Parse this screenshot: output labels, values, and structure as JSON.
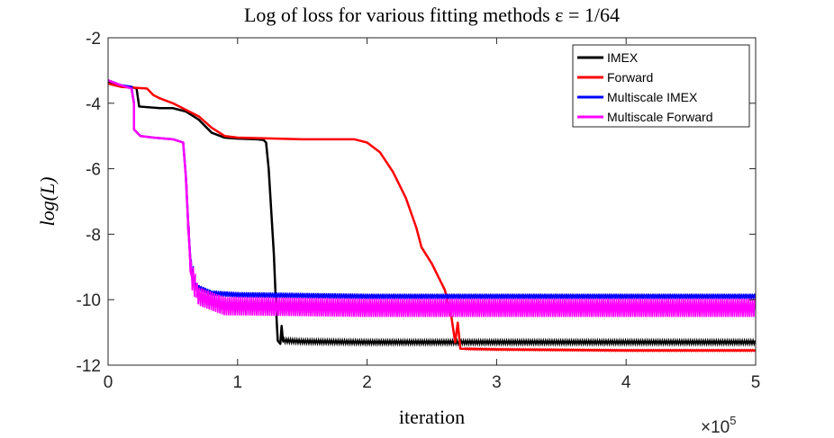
{
  "chart_data": {
    "type": "line",
    "title": "Log of loss for various fitting methods ε = 1/64",
    "xlabel": "iteration",
    "ylabel": "log(L)",
    "x_exponent_label": "×10",
    "x_exponent_power": "5",
    "xlim": [
      0,
      5
    ],
    "ylim": [
      -12,
      -2
    ],
    "xticks": [
      0,
      1,
      2,
      3,
      4,
      5
    ],
    "xtick_labels": [
      "0",
      "1",
      "2",
      "3",
      "4",
      "5"
    ],
    "yticks": [
      -12,
      -10,
      -8,
      -6,
      -4,
      -2
    ],
    "ytick_labels": [
      "-12",
      "-10",
      "-8",
      "-6",
      "-4",
      "-2"
    ],
    "legend_position": "top-right",
    "series": [
      {
        "name": "IMEX",
        "color": "#000000",
        "noise": [
          {
            "x_start": 1.35,
            "x_end": 5.0,
            "amplitude": 0.06
          }
        ],
        "points": [
          [
            0,
            -3.35
          ],
          [
            0.08,
            -3.45
          ],
          [
            0.18,
            -3.5
          ],
          [
            0.22,
            -3.55
          ],
          [
            0.24,
            -4.1
          ],
          [
            0.4,
            -4.15
          ],
          [
            0.5,
            -4.15
          ],
          [
            0.6,
            -4.25
          ],
          [
            0.7,
            -4.5
          ],
          [
            0.8,
            -4.9
          ],
          [
            0.9,
            -5.05
          ],
          [
            1.0,
            -5.08
          ],
          [
            1.15,
            -5.1
          ],
          [
            1.2,
            -5.12
          ],
          [
            1.22,
            -5.2
          ],
          [
            1.24,
            -6.0
          ],
          [
            1.26,
            -7.3
          ],
          [
            1.28,
            -8.6
          ],
          [
            1.3,
            -10.5
          ],
          [
            1.31,
            -11.25
          ],
          [
            1.33,
            -11.35
          ],
          [
            1.34,
            -10.8
          ],
          [
            1.35,
            -11.25
          ],
          [
            1.5,
            -11.28
          ],
          [
            2.0,
            -11.3
          ],
          [
            3.0,
            -11.3
          ],
          [
            4.0,
            -11.3
          ],
          [
            5.0,
            -11.3
          ]
        ]
      },
      {
        "name": "Forward",
        "color": "#ff0000",
        "noise": [
          {
            "x_start": 2.75,
            "x_end": 5.0,
            "amplitude": 0.03
          }
        ],
        "points": [
          [
            0,
            -3.4
          ],
          [
            0.1,
            -3.5
          ],
          [
            0.3,
            -3.55
          ],
          [
            0.35,
            -3.75
          ],
          [
            0.4,
            -3.85
          ],
          [
            0.5,
            -4.0
          ],
          [
            0.7,
            -4.4
          ],
          [
            0.8,
            -4.75
          ],
          [
            0.9,
            -5.0
          ],
          [
            1.0,
            -5.05
          ],
          [
            1.5,
            -5.1
          ],
          [
            1.9,
            -5.1
          ],
          [
            2.0,
            -5.2
          ],
          [
            2.1,
            -5.5
          ],
          [
            2.2,
            -6.1
          ],
          [
            2.3,
            -6.9
          ],
          [
            2.38,
            -7.8
          ],
          [
            2.42,
            -8.4
          ],
          [
            2.5,
            -8.9
          ],
          [
            2.6,
            -9.7
          ],
          [
            2.65,
            -10.5
          ],
          [
            2.68,
            -11.3
          ],
          [
            2.7,
            -10.7
          ],
          [
            2.72,
            -11.5
          ],
          [
            3.0,
            -11.52
          ],
          [
            4.0,
            -11.55
          ],
          [
            5.0,
            -11.55
          ]
        ]
      },
      {
        "name": "Multiscale IMEX",
        "color": "#0000ff",
        "noise": [
          {
            "x_start": 0.6,
            "x_end": 0.66,
            "amplitude": 0.35
          },
          {
            "x_start": 0.66,
            "x_end": 5.0,
            "amplitude": 0.08
          }
        ],
        "points": [
          [
            0,
            -3.3
          ],
          [
            0.1,
            -3.45
          ],
          [
            0.18,
            -3.5
          ],
          [
            0.2,
            -4.0
          ],
          [
            0.2,
            -4.8
          ],
          [
            0.25,
            -5.0
          ],
          [
            0.35,
            -5.05
          ],
          [
            0.5,
            -5.1
          ],
          [
            0.58,
            -5.2
          ],
          [
            0.6,
            -6.2
          ],
          [
            0.62,
            -7.8
          ],
          [
            0.64,
            -9.1
          ],
          [
            0.68,
            -9.6
          ],
          [
            0.8,
            -9.8
          ],
          [
            1.0,
            -9.85
          ],
          [
            2.0,
            -9.9
          ],
          [
            3.0,
            -9.9
          ],
          [
            4.0,
            -9.9
          ],
          [
            5.0,
            -9.9
          ]
        ]
      },
      {
        "name": "Multiscale Forward",
        "color": "#ff00ff",
        "noise": [
          {
            "x_start": 0.6,
            "x_end": 0.68,
            "amplitude": 0.4
          },
          {
            "x_start": 0.68,
            "x_end": 5.0,
            "amplitude": 0.28
          }
        ],
        "points": [
          [
            0,
            -3.3
          ],
          [
            0.1,
            -3.45
          ],
          [
            0.18,
            -3.55
          ],
          [
            0.2,
            -4.0
          ],
          [
            0.2,
            -4.8
          ],
          [
            0.25,
            -5.0
          ],
          [
            0.35,
            -5.05
          ],
          [
            0.5,
            -5.1
          ],
          [
            0.58,
            -5.2
          ],
          [
            0.6,
            -6.2
          ],
          [
            0.62,
            -7.8
          ],
          [
            0.64,
            -9.2
          ],
          [
            0.7,
            -9.9
          ],
          [
            0.9,
            -10.2
          ],
          [
            1.0,
            -10.2
          ],
          [
            2.0,
            -10.25
          ],
          [
            3.0,
            -10.25
          ],
          [
            4.0,
            -10.25
          ],
          [
            5.0,
            -10.25
          ]
        ]
      }
    ]
  }
}
